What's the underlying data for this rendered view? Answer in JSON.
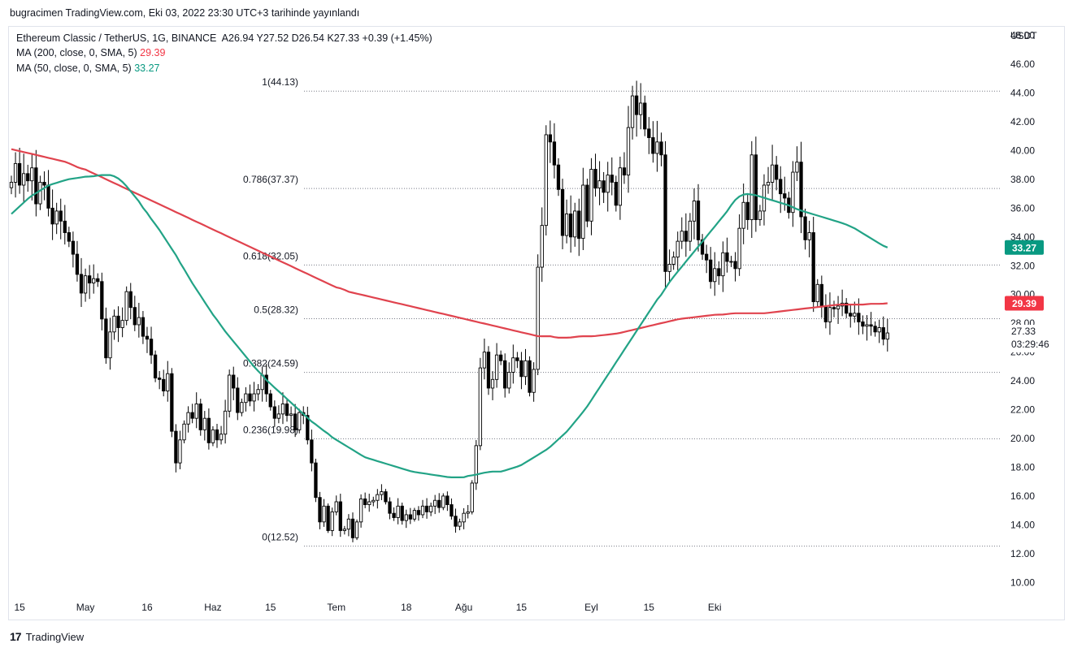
{
  "header": {
    "published": "bugracimen TradingView.com, Eki 03, 2022 23:30 UTC+3 tarihinde yayınlandı"
  },
  "legend": {
    "symbol": "Ethereum Classic / TetherUS, 1G, BINANCE",
    "open": "A26.94",
    "high": "Y27.52",
    "low": "D26.54",
    "close": "K27.33",
    "change": "+0.39 (+1.45%)",
    "ma200_label": "MA (200, close, 0, SMA, 5)",
    "ma200_value": "29.39",
    "ma50_label": "MA (50, close, 0, SMA, 5)",
    "ma50_value": "33.27"
  },
  "footer": {
    "logo_mark": "17",
    "logo_text": "TradingView"
  },
  "colors": {
    "up": "#ffffff",
    "down": "#000000",
    "ma200": "#e0434e",
    "ma50": "#22a386",
    "fib": "#787b86",
    "last_price_bg": "#ffffff"
  },
  "chart_data": {
    "type": "candlestick",
    "currency": "USDT",
    "y_ticks": [
      "10.00",
      "12.00",
      "14.00",
      "16.00",
      "18.00",
      "20.00",
      "22.00",
      "24.00",
      "26.00",
      "28.00",
      "30.00",
      "32.00",
      "34.00",
      "36.00",
      "38.00",
      "40.00",
      "42.00",
      "44.00",
      "46.00",
      "48.00"
    ],
    "ylim": [
      9,
      48.6
    ],
    "x_ticks": [
      {
        "label": "15",
        "date": "2022-04-15"
      },
      {
        "label": "May",
        "date": "2022-05-01"
      },
      {
        "label": "16",
        "date": "2022-05-16"
      },
      {
        "label": "Haz",
        "date": "2022-06-01"
      },
      {
        "label": "15",
        "date": "2022-06-15"
      },
      {
        "label": "Tem",
        "date": "2022-07-01"
      },
      {
        "label": "18",
        "date": "2022-07-18"
      },
      {
        "label": "Ağu",
        "date": "2022-08-01"
      },
      {
        "label": "15",
        "date": "2022-08-15"
      },
      {
        "label": "Eyl",
        "date": "2022-09-01"
      },
      {
        "label": "15",
        "date": "2022-09-15"
      },
      {
        "label": "Eki",
        "date": "2022-10-01"
      }
    ],
    "fib_levels": [
      {
        "label": "1(44.13)",
        "value": 44.13
      },
      {
        "label": "0.786(37.37)",
        "value": 37.37
      },
      {
        "label": "0.618(32.05)",
        "value": 32.05
      },
      {
        "label": "0.5(28.32)",
        "value": 28.32
      },
      {
        "label": "0.382(24.59)",
        "value": 24.59
      },
      {
        "label": "0.236(19.98)",
        "value": 19.98
      },
      {
        "label": "0(12.52)",
        "value": 12.52
      }
    ],
    "last_price": {
      "value": 27.33,
      "label": "27.33",
      "countdown": "03:29:46"
    },
    "ma_badges": [
      {
        "value": 33.27,
        "label": "33.27",
        "color": "#089981"
      },
      {
        "value": 29.39,
        "label": "29.39",
        "color": "#f23645"
      }
    ],
    "candles_start": "2022-04-13",
    "closes": [
      37.8,
      39.1,
      37.6,
      38.4,
      37.9,
      38.8,
      36.3,
      37.8,
      37.6,
      36.0,
      34.9,
      35.8,
      35.1,
      34.3,
      33.7,
      32.8,
      31.4,
      30.1,
      31.3,
      30.8,
      31.1,
      30.9,
      28.3,
      25.6,
      27.4,
      28.5,
      27.7,
      28.2,
      30.2,
      29.1,
      27.9,
      28.4,
      27.1,
      26.9,
      25.8,
      24.2,
      24.1,
      23.3,
      24.5,
      20.5,
      18.3,
      19.9,
      21.0,
      21.8,
      21.4,
      22.4,
      20.6,
      21.4,
      19.7,
      20.6,
      19.9,
      20.3,
      21.9,
      24.4,
      23.5,
      21.8,
      22.5,
      23.1,
      22.6,
      23.1,
      23.4,
      24.4,
      23.1,
      22.2,
      21.4,
      21.7,
      22.4,
      21.6,
      21.7,
      20.6,
      21.8,
      21.6,
      19.9,
      18.3,
      15.9,
      14.2,
      15.3,
      13.6,
      14.9,
      15.6,
      13.6,
      13.7,
      14.4,
      13.1,
      14.2,
      15.8,
      15.4,
      15.6,
      15.7,
      16.1,
      16.3,
      15.6,
      14.8,
      14.5,
      15.3,
      14.3,
      14.7,
      14.4,
      15.0,
      14.7,
      15.3,
      14.9,
      15.3,
      15.7,
      15.2,
      16.0,
      15.4,
      14.6,
      13.9,
      14.2,
      14.8,
      14.9,
      16.9,
      19.5,
      24.9,
      26.0,
      23.5,
      24.1,
      25.8,
      25.4,
      23.5,
      24.6,
      25.6,
      25.4,
      24.3,
      25.4,
      23.2,
      24.8,
      31.9,
      34.8,
      41.1,
      40.6,
      39.0,
      37.3,
      34.1,
      35.6,
      34.0,
      35.8,
      33.9,
      37.6,
      35.1,
      38.7,
      37.4,
      37.9,
      37.1,
      38.3,
      37.8,
      36.2,
      38.8,
      38.3,
      41.6,
      43.8,
      42.5,
      43.3,
      41.5,
      40.9,
      39.8,
      40.6,
      39.7,
      31.6,
      32.1,
      32.6,
      33.7,
      34.4,
      33.7,
      35.1,
      36.5,
      33.8,
      32.8,
      32.4,
      30.9,
      31.8,
      31.3,
      32.9,
      32.3,
      32.3,
      31.8,
      34.6,
      36.4,
      35.2,
      39.7,
      35.2,
      35.8,
      37.6,
      37.8,
      39.0,
      38.0,
      37.0,
      36.7,
      35.7,
      38.5,
      39.2,
      35.4,
      33.8,
      34.3,
      29.5,
      30.7,
      29.2,
      28.1,
      29.1,
      29.0,
      29.2,
      29.4,
      28.7,
      28.5,
      28.7,
      28.1,
      27.8,
      27.9,
      27.8,
      27.4,
      27.7,
      26.9,
      27.33
    ],
    "ma50_values": [
      35.6,
      35.9,
      36.2,
      36.5,
      36.8,
      37.0,
      37.2,
      37.4,
      37.6,
      37.7,
      37.8,
      37.9,
      38.0,
      38.05,
      38.1,
      38.15,
      38.2,
      38.2,
      38.25,
      38.3,
      38.3,
      38.3,
      38.2,
      38.0,
      37.7,
      37.3,
      36.9,
      36.5,
      36.0,
      35.6,
      35.1,
      34.7,
      34.2,
      33.7,
      33.2,
      32.7,
      32.1,
      31.6,
      31.0,
      30.5,
      30.0,
      29.5,
      29.0,
      28.5,
      28.1,
      27.6,
      27.2,
      26.8,
      26.4,
      26.0,
      25.6,
      25.2,
      24.8,
      24.5,
      24.1,
      23.8,
      23.5,
      23.2,
      22.9,
      22.6,
      22.3,
      22.0,
      21.7,
      21.4,
      21.1,
      20.9,
      20.6,
      20.4,
      20.1,
      19.9,
      19.7,
      19.5,
      19.3,
      19.1,
      18.9,
      18.7,
      18.6,
      18.5,
      18.4,
      18.3,
      18.2,
      18.1,
      18.0,
      17.9,
      17.8,
      17.7,
      17.65,
      17.6,
      17.55,
      17.5,
      17.45,
      17.4,
      17.35,
      17.3,
      17.3,
      17.3,
      17.3,
      17.4,
      17.45,
      17.5,
      17.6,
      17.65,
      17.7,
      17.7,
      17.7,
      17.8,
      17.9,
      18.0,
      18.1,
      18.3,
      18.5,
      18.7,
      18.9,
      19.1,
      19.3,
      19.6,
      19.9,
      20.2,
      20.5,
      20.9,
      21.3,
      21.7,
      22.1,
      22.6,
      23.1,
      23.6,
      24.1,
      24.6,
      25.1,
      25.6,
      26.1,
      26.6,
      27.1,
      27.6,
      28.1,
      28.6,
      29.1,
      29.6,
      30.0,
      30.5,
      31.0,
      31.4,
      31.8,
      32.2,
      32.6,
      33.0,
      33.4,
      33.8,
      34.2,
      34.6,
      35.0,
      35.4,
      35.8,
      36.3,
      36.7,
      36.9,
      37.0,
      36.95,
      36.9,
      36.8,
      36.7,
      36.6,
      36.5,
      36.4,
      36.3,
      36.2,
      36.05,
      35.9,
      35.8,
      35.7,
      35.6,
      35.5,
      35.4,
      35.3,
      35.2,
      35.1,
      35.0,
      34.9,
      34.75,
      34.6,
      34.4,
      34.2,
      34.0,
      33.8,
      33.6,
      33.4,
      33.27
    ],
    "ma200_values": [
      40.1,
      40.0,
      39.9,
      39.8,
      39.7,
      39.6,
      39.5,
      39.4,
      39.3,
      39.2,
      39.0,
      38.8,
      38.7,
      38.5,
      38.3,
      38.1,
      37.9,
      37.7,
      37.5,
      37.3,
      37.1,
      36.9,
      36.7,
      36.5,
      36.3,
      36.1,
      35.9,
      35.7,
      35.5,
      35.3,
      35.1,
      34.9,
      34.7,
      34.5,
      34.3,
      34.1,
      33.9,
      33.7,
      33.5,
      33.3,
      33.1,
      32.9,
      32.7,
      32.5,
      32.3,
      32.1,
      31.9,
      31.7,
      31.5,
      31.3,
      31.1,
      30.9,
      30.7,
      30.5,
      30.4,
      30.2,
      30.1,
      30.0,
      29.9,
      29.8,
      29.7,
      29.6,
      29.5,
      29.4,
      29.3,
      29.2,
      29.1,
      29.0,
      28.9,
      28.8,
      28.7,
      28.6,
      28.5,
      28.4,
      28.3,
      28.2,
      28.1,
      28.0,
      27.9,
      27.8,
      27.7,
      27.6,
      27.5,
      27.4,
      27.3,
      27.2,
      27.1,
      27.1,
      27.1,
      27.0,
      27.0,
      27.0,
      27.05,
      27.1,
      27.1,
      27.1,
      27.15,
      27.2,
      27.25,
      27.3,
      27.4,
      27.5,
      27.6,
      27.7,
      27.8,
      27.9,
      28.0,
      28.1,
      28.2,
      28.3,
      28.35,
      28.4,
      28.45,
      28.5,
      28.55,
      28.6,
      28.6,
      28.65,
      28.7,
      28.7,
      28.7,
      28.7,
      28.7,
      28.7,
      28.75,
      28.8,
      28.85,
      28.9,
      28.95,
      29.0,
      29.05,
      29.1,
      29.15,
      29.2,
      29.25,
      29.3,
      29.3,
      29.3,
      29.3,
      29.3,
      29.35,
      29.35,
      29.35,
      29.39
    ]
  }
}
